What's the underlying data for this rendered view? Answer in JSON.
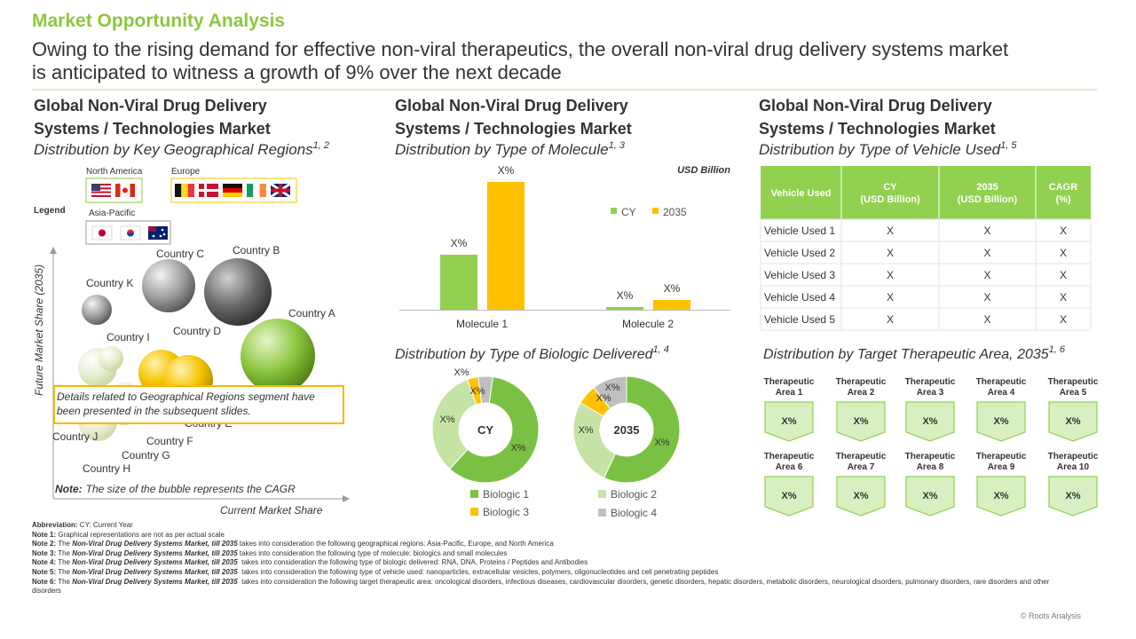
{
  "header": {
    "title": "Market Opportunity Analysis",
    "subtitle": [
      "Owing to the rising demand for effective non-viral therapeutics, the overall non-viral drug delivery systems market",
      "is anticipated to witness a growth of 9% over the next decade"
    ]
  },
  "geography": {
    "title": [
      "Global Non-Viral Drug Delivery",
      "Systems / Technologies Market"
    ],
    "subtitle": "Distribution by Key Geographical Regions",
    "refs": "1, 2",
    "legend": {
      "title": "Legend",
      "groups": [
        "North America",
        "Europe",
        "Asia-Pacific"
      ]
    },
    "countries": [
      "Country A",
      "Country B",
      "Country C",
      "Country D",
      "Country E",
      "Country F",
      "Country G",
      "Country H",
      "Country I",
      "Country J",
      "Country K"
    ],
    "y_axis": "Future Market Share  (2035)",
    "x_axis": "Current Market Share",
    "callout": [
      "Details related to Geographical Regions segment have",
      "been presented in the subsequent slides."
    ],
    "note_label": "Note:",
    "note": "The size of the bubble represents the CAGR"
  },
  "molecule": {
    "title": [
      "Global Non-Viral Drug Delivery",
      "Systems / Technologies Market"
    ],
    "subtitle": "Distribution by Type of Molecule",
    "refs": "1, 3",
    "unit": "USD Billion",
    "legend": [
      "CY",
      "2035"
    ],
    "categories": [
      "Molecule 1",
      "Molecule 2"
    ],
    "labels": [
      [
        "X%",
        "X%"
      ],
      [
        "X%",
        "X%"
      ]
    ]
  },
  "biologic": {
    "subtitle": "Distribution by Type of Biologic Delivered",
    "refs": "1, 4",
    "donuts": [
      {
        "label": "CY",
        "slice_labels": [
          "X%",
          "X%",
          "X%",
          "X%"
        ]
      },
      {
        "label": "2035",
        "slice_labels": [
          "X%",
          "X%",
          "X%",
          "X%"
        ]
      }
    ],
    "legend": [
      "Biologic 1",
      "Biologic 2",
      "Biologic 3",
      "Biologic 4"
    ]
  },
  "vehicle": {
    "title": [
      "Global Non-Viral Drug Delivery",
      "Systems / Technologies Market"
    ],
    "subtitle": "Distribution by Type of Vehicle Used",
    "refs": "1, 5",
    "table": {
      "header": [
        [
          "Vehicle Used"
        ],
        [
          "CY",
          "(USD Billion)"
        ],
        [
          "2035",
          "(USD Billion)"
        ],
        [
          "CAGR",
          "(%)"
        ]
      ],
      "rows": [
        [
          "Vehicle Used 1",
          "X",
          "X",
          "X"
        ],
        [
          "Vehicle Used 2",
          "X",
          "X",
          "X"
        ],
        [
          "Vehicle Used 3",
          "X",
          "X",
          "X"
        ],
        [
          "Vehicle Used 4",
          "X",
          "X",
          "X"
        ],
        [
          "Vehicle Used 5",
          "X",
          "X",
          "X"
        ]
      ]
    }
  },
  "therapeutic": {
    "subtitle": "Distribution by Target Therapeutic Area, 2035",
    "refs": "1, 6",
    "areas": [
      {
        "label": [
          "Therapeutic",
          "Area 1"
        ],
        "value": "X%"
      },
      {
        "label": [
          "Therapeutic",
          "Area 2"
        ],
        "value": "X%"
      },
      {
        "label": [
          "Therapeutic",
          "Area 3"
        ],
        "value": "X%"
      },
      {
        "label": [
          "Therapeutic",
          "Area 4"
        ],
        "value": "X%"
      },
      {
        "label": [
          "Therapeutic",
          "Area 5"
        ],
        "value": "X%"
      },
      {
        "label": [
          "Therapeutic",
          "Area 6"
        ],
        "value": "X%"
      },
      {
        "label": [
          "Therapeutic",
          "Area 7"
        ],
        "value": "X%"
      },
      {
        "label": [
          "Therapeutic",
          "Area 8"
        ],
        "value": "X%"
      },
      {
        "label": [
          "Therapeutic",
          "Area 9"
        ],
        "value": "X%"
      },
      {
        "label": [
          "Therapeutic",
          "Area 10"
        ],
        "value": "X%"
      }
    ]
  },
  "notes": [
    {
      "label": "Abbreviation:",
      "text": " CY: Current Year"
    },
    {
      "label": "Note 1:",
      "text": " Graphical representations are not as per actual scale"
    },
    {
      "label": "Note 2:",
      "pre": " The ",
      "em": "Non-Viral Drug Delivery Systems Market, till 2035",
      "text": " takes into consideration the following geographical regions: Asia-Pacific, Europe, and North America"
    },
    {
      "label": "Note 3:",
      "pre": " The ",
      "em": "Non-Viral Drug Delivery Systems Market, till 2035",
      "text": " takes into consideration the following type of molecule: biologics and small molecules"
    },
    {
      "label": "Note 4:",
      "pre": " The ",
      "em": "Non-Viral Drug Delivery Systems Market, till 2035",
      "text": "  takes into consideration the following type of biologic delivered: RNA, DNA, Proteins / Peptides and Antibodies"
    },
    {
      "label": "Note 5:",
      "pre": " The ",
      "em": "Non-Viral Drug Delivery Systems Market, till 2035",
      "text": "  takes into consideration the following type of vehicle used: nanoparticles, extracellular vesicles, polymers, oligonucleotides and cell penetrating peptides"
    },
    {
      "label": "Note 6:",
      "pre": " The ",
      "em": "Non-Viral Drug Delivery Systems Market, till 2035",
      "text": "  takes into consideration the following target therapeutic area: oncological disorders, infectious diseases, cardiovascular disorders, genetic disorders, hepatic disorders, metabolic disorders, neurological disorders, pulmonary disorders, rare disorders and other disorders"
    }
  ],
  "footer": "© Roots Analysis"
}
